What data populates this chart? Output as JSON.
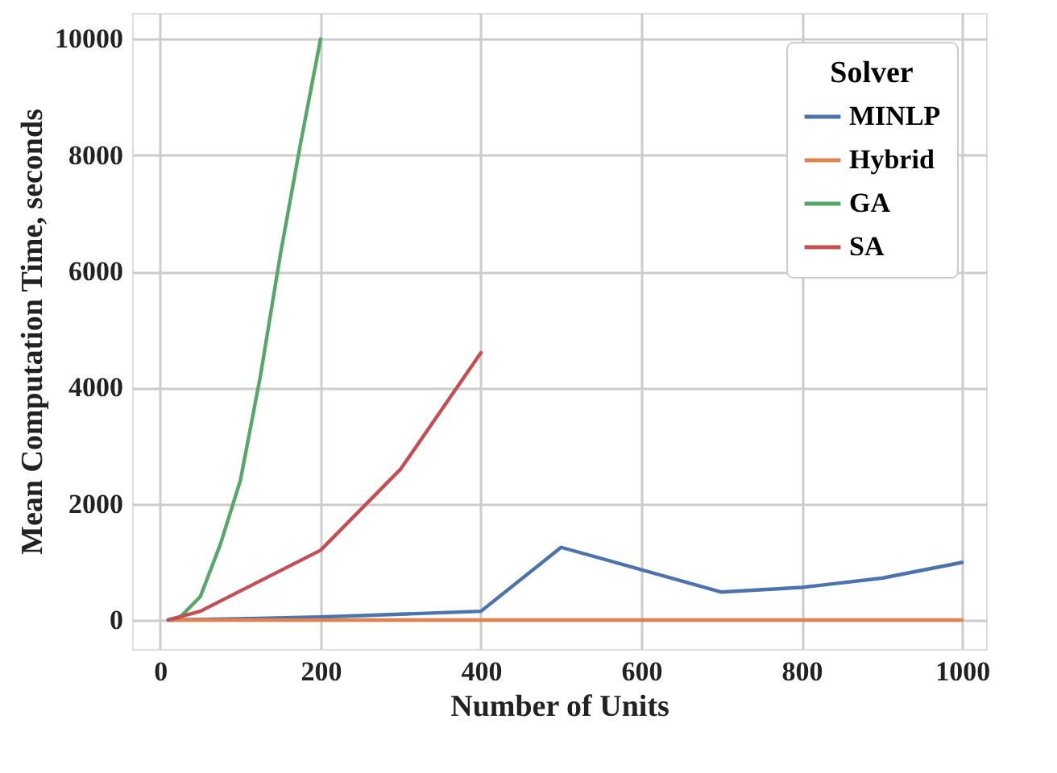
{
  "chart_data": {
    "type": "line",
    "xlabel": "Number of Units",
    "ylabel": "Mean Computation Time, seconds",
    "legend_title": "Solver",
    "legend": "top right",
    "grid": true,
    "xlim": [
      -35,
      1030
    ],
    "xticks": [
      0,
      200,
      400,
      600,
      800,
      1000
    ],
    "ylim": [
      -500,
      10450
    ],
    "yticks": [
      0,
      2000,
      4000,
      6000,
      8000,
      10000
    ],
    "series": [
      {
        "name": "MINLP",
        "color": "#4c72b0",
        "x": [
          10,
          100,
          200,
          300,
          400,
          500,
          700,
          800,
          900,
          1000
        ],
        "values": [
          0,
          20,
          50,
          100,
          150,
          1250,
          480,
          560,
          720,
          990
        ]
      },
      {
        "name": "Hybrid",
        "color": "#dd8452",
        "x": [
          10,
          200,
          400,
          600,
          800,
          1000
        ],
        "values": [
          0,
          0,
          0,
          0,
          0,
          0
        ]
      },
      {
        "name": "GA",
        "color": "#55a868",
        "x": [
          10,
          25,
          50,
          75,
          100,
          125,
          150,
          175,
          200
        ],
        "values": [
          0,
          50,
          400,
          1300,
          2400,
          4200,
          6300,
          8200,
          10000
        ]
      },
      {
        "name": "SA",
        "color": "#c44e52",
        "x": [
          10,
          50,
          100,
          200,
          300,
          400
        ],
        "values": [
          0,
          150,
          500,
          1200,
          2600,
          4600
        ]
      }
    ]
  }
}
